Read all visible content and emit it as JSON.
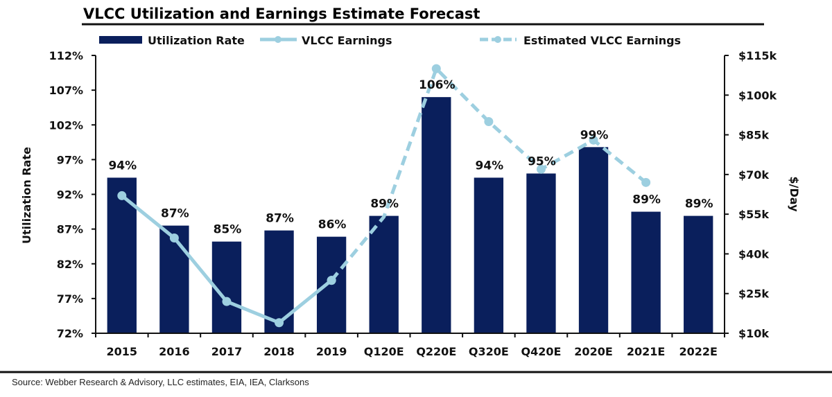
{
  "chart_data": {
    "type": "bar",
    "title": "VLCC Utilization and Earnings Estimate Forecast",
    "categories": [
      "2015",
      "2016",
      "2017",
      "2018",
      "2019",
      "Q120E",
      "Q220E",
      "Q320E",
      "Q420E",
      "2020E",
      "2021E",
      "2022E"
    ],
    "series": [
      {
        "name": "Utilization Rate",
        "kind": "bar",
        "axis": "left",
        "color": "#0a1f5c",
        "values": [
          94.4,
          87.5,
          85.2,
          86.8,
          85.9,
          88.9,
          106.0,
          94.4,
          95.0,
          98.8,
          89.5,
          88.9
        ],
        "labels": [
          "94%",
          "87%",
          "85%",
          "87%",
          "86%",
          "89%",
          "106%",
          "94%",
          "95%",
          "99%",
          "89%",
          "89%"
        ]
      },
      {
        "name": "VLCC Earnings",
        "kind": "line",
        "axis": "right",
        "style": "solid",
        "color": "#9dcfe0",
        "values": [
          62,
          46,
          22,
          14,
          30,
          null,
          null,
          null,
          null,
          null,
          null,
          null
        ]
      },
      {
        "name": "Estimated VLCC Earnings",
        "kind": "line",
        "axis": "right",
        "style": "dashed",
        "color": "#9dcfe0",
        "values": [
          null,
          null,
          null,
          null,
          30,
          54,
          110,
          90,
          72,
          83,
          67,
          null
        ],
        "markers": [
          false,
          false,
          false,
          false,
          true,
          false,
          true,
          true,
          true,
          true,
          true,
          false
        ]
      }
    ],
    "y_left": {
      "label": "Utilization Rate",
      "range": [
        72,
        112
      ],
      "ticks": [
        72,
        77,
        82,
        87,
        92,
        97,
        102,
        107,
        112
      ],
      "tick_labels": [
        "72%",
        "77%",
        "82%",
        "87%",
        "92%",
        "97%",
        "102%",
        "107%",
        "112%"
      ]
    },
    "y_right": {
      "label": "$/Day",
      "range": [
        10,
        115
      ],
      "ticks": [
        10,
        25,
        40,
        55,
        70,
        85,
        100,
        115
      ],
      "tick_labels": [
        "$10k",
        "$25k",
        "$40k",
        "$55k",
        "$70k",
        "$85k",
        "$100k",
        "$115k"
      ]
    },
    "xlabel": "",
    "grid": false,
    "legend": {
      "position": "top",
      "entries": [
        "Utilization Rate",
        "VLCC Earnings",
        "Estimated VLCC Earnings"
      ]
    },
    "source": "Source: Webber Research & Advisory, LLC estimates, EIA, IEA, Clarksons"
  }
}
